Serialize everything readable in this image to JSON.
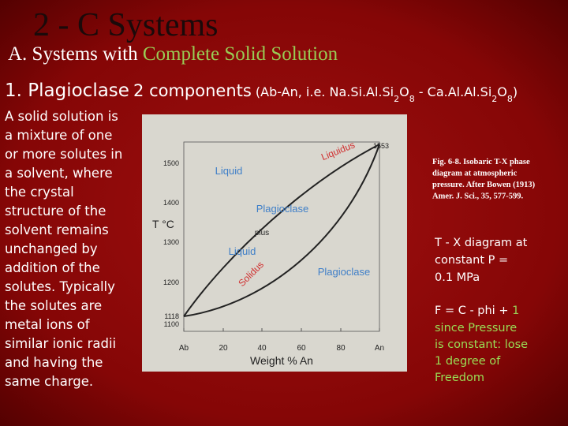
{
  "header": {
    "title": "2 - C Systems",
    "subtitle": "A. Systems with",
    "subtitle_highlight": "Complete Solid Solution"
  },
  "heading": {
    "number": "1. Plagioclase",
    "text": "2 components",
    "formula": [
      "(Ab-An, i.e. Na.Si.Al.Si",
      "2",
      "O",
      "8",
      " - Ca.Al.Al.Si",
      "2",
      "O",
      "8",
      ")"
    ]
  },
  "body": [
    "A solid solution is",
    "a mixture of one",
    "or more solutes in",
    "a solvent, where",
    "the crystal",
    "structure of the",
    "solvent remains",
    "unchanged by",
    "addition of the",
    "solutes. Typically",
    "the solutes are",
    "metal ions of",
    "similar ionic radii",
    "and having the",
    "same charge."
  ],
  "figure": {
    "y_label": "T °C",
    "x_label": "Weight % An",
    "y_ticks": [
      "1553",
      "1500",
      "1400",
      "1300",
      "1200",
      "1118",
      "1100"
    ],
    "x_ticks": [
      "Ab",
      "20",
      "40",
      "60",
      "80",
      "An"
    ],
    "curves": {
      "liquidus": "Liquidus",
      "solidus": "Solidus"
    },
    "regions": {
      "liquid": "Liquid",
      "mixed_top": "Plagioclase",
      "mixed_plus": "plus",
      "mixed_bottom": "Liquid",
      "solid": "Plagioclase"
    }
  },
  "caption": [
    "Fig. 6-8. Isobaric T-X phase",
    "diagram at atmospheric",
    "pressure. After Bowen (1913)",
    "Amer. J. Sci., 35, 577-599."
  ],
  "note_1": [
    "T - X diagram at",
    "constant P =",
    "0.1 MPa"
  ],
  "note_2": {
    "formula": "F = C - phi +",
    "formula_highlight": "1",
    "lines": [
      "since Pressure",
      "is constant: lose",
      "1 degree of",
      "Freedom"
    ]
  }
}
